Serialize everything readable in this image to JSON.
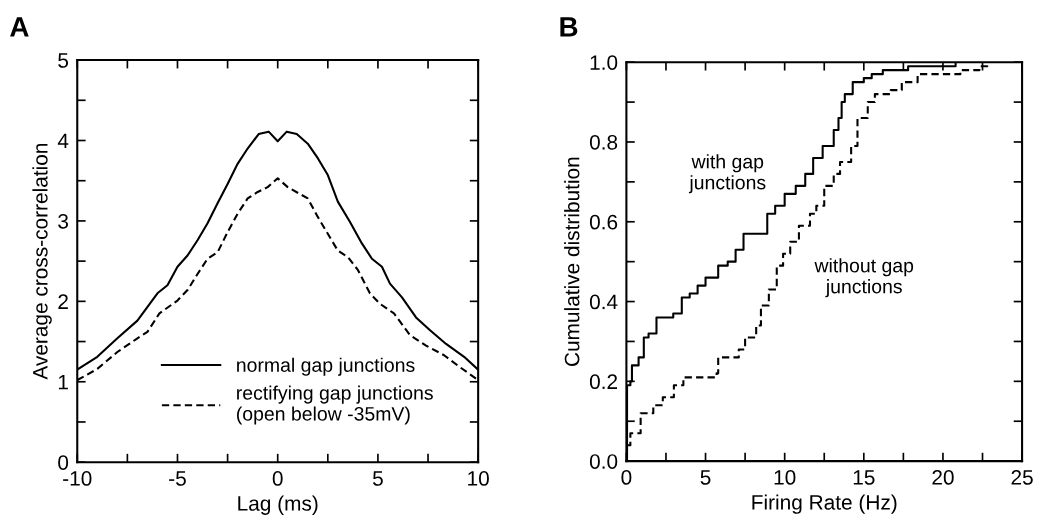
{
  "chart_data": [
    {
      "type": "line",
      "title": "A",
      "xlabel": "Lag (ms)",
      "ylabel": "Average cross-correlation",
      "xlim": [
        -10,
        10
      ],
      "ylim": [
        0,
        5
      ],
      "xticks": [
        -10,
        {
          "value": -7.5,
          "label": null
        },
        -5,
        {
          "value": -2.5,
          "label": null
        },
        0,
        {
          "value": 2.5,
          "label": null
        },
        5,
        {
          "value": 7.5,
          "label": null
        },
        10
      ],
      "yticks": [
        0,
        {
          "value": 0.5,
          "label": null
        },
        1,
        {
          "value": 1.5,
          "label": null
        },
        2,
        {
          "value": 2.5,
          "label": null
        },
        3,
        {
          "value": 3.5,
          "label": null
        },
        4,
        {
          "value": 4.5,
          "label": null
        },
        5
      ],
      "legend": "bottom",
      "grid": false,
      "series": [
        {
          "name": "normal gap junctions",
          "color": "#000000",
          "line_style": "solid",
          "x": [
            -10,
            -9,
            -8,
            -7,
            -6,
            -5.5,
            -5,
            -4.5,
            -4,
            -3.5,
            -3,
            -2.5,
            -2,
            -1.5,
            -0.95,
            -0.45,
            0,
            0.45,
            0.95,
            1.5,
            2,
            2.5,
            3,
            3.6,
            4.2,
            4.7,
            5.2,
            5.6,
            6.2,
            6.9,
            7.6,
            8.4,
            9.3,
            10
          ],
          "values": [
            1.15,
            1.31,
            1.54,
            1.76,
            2.1,
            2.2,
            2.43,
            2.57,
            2.76,
            2.97,
            3.22,
            3.46,
            3.71,
            3.9,
            4.08,
            4.11,
            3.99,
            4.11,
            4.08,
            3.96,
            3.78,
            3.57,
            3.24,
            2.99,
            2.72,
            2.53,
            2.43,
            2.22,
            2.05,
            1.8,
            1.64,
            1.47,
            1.31,
            1.15
          ]
        },
        {
          "name": "rectifying gap junctions\n(open below -35mV)",
          "color": "#000000",
          "line_style": "dashed",
          "x": [
            -10,
            -9,
            -8,
            -7,
            -6.5,
            -5.9,
            -5,
            -4.5,
            -4,
            -3.5,
            -3,
            -2.5,
            -2,
            -1.5,
            -1,
            -0.5,
            0,
            0.5,
            1.5,
            2,
            2.5,
            3,
            3.5,
            4,
            4.6,
            5.1,
            5.8,
            6.6,
            7.4,
            8.3,
            9.1,
            10
          ],
          "values": [
            1.02,
            1.16,
            1.37,
            1.54,
            1.62,
            1.85,
            2.01,
            2.14,
            2.34,
            2.53,
            2.61,
            2.86,
            3.09,
            3.28,
            3.36,
            3.42,
            3.53,
            3.42,
            3.28,
            3.05,
            2.84,
            2.63,
            2.55,
            2.39,
            2.1,
            1.97,
            1.85,
            1.58,
            1.45,
            1.33,
            1.18,
            1.02
          ]
        }
      ]
    },
    {
      "type": "step",
      "title": "B",
      "xlabel": "Firing Rate (Hz)",
      "ylabel": "Cumulative distribution",
      "xlim": [
        0,
        25
      ],
      "ylim": [
        0,
        1
      ],
      "xticks": [
        0,
        {
          "value": 2.5,
          "label": null
        },
        5,
        {
          "value": 7.5,
          "label": null
        },
        10,
        {
          "value": 12.5,
          "label": null
        },
        15,
        {
          "value": 17.5,
          "label": null
        },
        20,
        {
          "value": 22.5,
          "label": null
        },
        25
      ],
      "yticks": [
        {
          "value": 0,
          "label": "0.0"
        },
        {
          "value": 0.1,
          "label": null
        },
        {
          "value": 0.2,
          "label": "0.2"
        },
        {
          "value": 0.3,
          "label": null
        },
        {
          "value": 0.4,
          "label": "0.4"
        },
        {
          "value": 0.5,
          "label": null
        },
        {
          "value": 0.6,
          "label": "0.6"
        },
        {
          "value": 0.7,
          "label": null
        },
        {
          "value": 0.8,
          "label": "0.8"
        },
        {
          "value": 0.9,
          "label": null
        },
        {
          "value": 1,
          "label": "1.0"
        }
      ],
      "grid": false,
      "series": [
        {
          "name": "with gap\njunctions",
          "color": "#000000",
          "line_style": "solid",
          "x": [
            0,
            0.04,
            0.25,
            0.35,
            0.77,
            1.1,
            1.4,
            1.9,
            2.96,
            3.5,
            4.0,
            4.5,
            5.0,
            5.8,
            6.4,
            6.9,
            7.4,
            8.3,
            8.9,
            9.4,
            10.0,
            10.7,
            11.3,
            11.8,
            12.4,
            13.1,
            13.4,
            13.6,
            13.8,
            14.3,
            15.0,
            15.5,
            16.2,
            17.8,
            20.8
          ],
          "values": [
            0,
            0.19,
            0.2,
            0.24,
            0.26,
            0.31,
            0.32,
            0.36,
            0.37,
            0.41,
            0.42,
            0.44,
            0.46,
            0.49,
            0.5,
            0.53,
            0.57,
            0.57,
            0.62,
            0.64,
            0.67,
            0.69,
            0.72,
            0.76,
            0.79,
            0.83,
            0.86,
            0.9,
            0.92,
            0.95,
            0.96,
            0.97,
            0.98,
            0.99,
            1.0
          ]
        },
        {
          "name": "without gap\njunctions",
          "color": "#000000",
          "line_style": "dashed",
          "x": [
            0,
            0.25,
            0.9,
            1.7,
            2.3,
            3.0,
            3.6,
            4.6,
            5.7,
            5.8,
            7.1,
            7.5,
            8.2,
            8.5,
            9.0,
            9.5,
            9.9,
            10.35,
            10.9,
            11.6,
            12.0,
            12.5,
            13.1,
            13.5,
            14.2,
            14.6,
            15.25,
            15.7,
            16.7,
            17.4,
            18.4,
            19.8,
            21.1,
            22.3,
            22.8
          ],
          "values": [
            0.04,
            0.07,
            0.12,
            0.14,
            0.16,
            0.19,
            0.21,
            0.21,
            0.22,
            0.26,
            0.28,
            0.31,
            0.34,
            0.39,
            0.43,
            0.49,
            0.52,
            0.55,
            0.59,
            0.62,
            0.64,
            0.69,
            0.72,
            0.75,
            0.79,
            0.86,
            0.9,
            0.92,
            0.93,
            0.95,
            0.97,
            0.97,
            0.98,
            0.99,
            1.0
          ]
        }
      ]
    }
  ]
}
